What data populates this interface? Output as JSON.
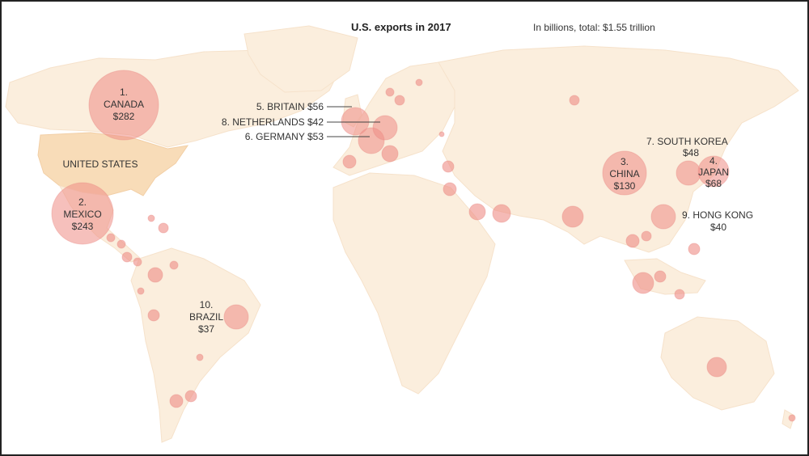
{
  "header": {
    "title": "U.S. exports in 2017",
    "subtitle": "In billions, total: $1.55 trillion"
  },
  "map": {
    "base_label": "UNITED STATES",
    "colors": {
      "land": "#fbeedd",
      "us": "#f8dcb8",
      "bubble": "#ee8c85"
    }
  },
  "chart_data": {
    "type": "bubble-map",
    "title": "U.S. exports in 2017",
    "unit": "In billions, total: $1.55 trillion",
    "ranked": [
      {
        "rank": "1.",
        "name": "CANADA",
        "value": "$282"
      },
      {
        "rank": "2.",
        "name": "MEXICO",
        "value": "$243"
      },
      {
        "rank": "3.",
        "name": "CHINA",
        "value": "$130"
      },
      {
        "rank": "4.",
        "name": "JAPAN",
        "value": "$68"
      },
      {
        "rank": "5.",
        "name": "BRITAIN",
        "value": "$56"
      },
      {
        "rank": "6.",
        "name": "GERMANY",
        "value": "$53"
      },
      {
        "rank": "7.",
        "name": "SOUTH KOREA",
        "value": "$48"
      },
      {
        "rank": "8.",
        "name": "NETHERLANDS",
        "value": "$42"
      },
      {
        "rank": "9.",
        "name": "HONG KONG",
        "value": "$40"
      },
      {
        "rank": "10.",
        "name": "BRAZIL",
        "value": "$37"
      }
    ]
  }
}
